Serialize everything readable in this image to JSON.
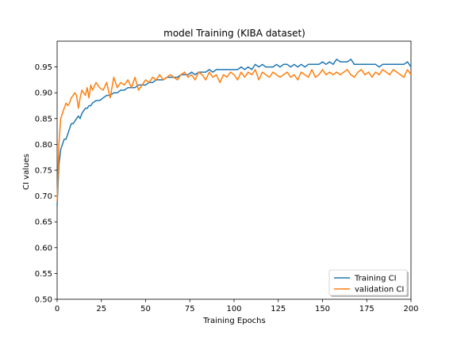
{
  "chart_data": {
    "type": "line",
    "title": "model Training (KIBA dataset)",
    "xlabel": "Training Epochs",
    "ylabel": "CI values",
    "xlim": [
      0,
      200
    ],
    "ylim": [
      0.5,
      1.0
    ],
    "xticks": [
      0,
      25,
      50,
      75,
      100,
      125,
      150,
      175,
      200
    ],
    "yticks": [
      0.5,
      0.55,
      0.6,
      0.65,
      0.7,
      0.75,
      0.8,
      0.85,
      0.9,
      0.95
    ],
    "grid": false,
    "legend_position": "bottom-right",
    "series": [
      {
        "name": "Training CI",
        "color": "#1f77b4",
        "x": [
          0,
          1,
          2,
          3,
          4,
          5,
          6,
          7,
          8,
          9,
          10,
          11,
          12,
          13,
          14,
          15,
          16,
          17,
          18,
          19,
          20,
          22,
          24,
          26,
          28,
          30,
          32,
          34,
          36,
          38,
          40,
          42,
          44,
          46,
          48,
          50,
          52,
          54,
          56,
          58,
          60,
          62,
          64,
          66,
          68,
          70,
          72,
          74,
          76,
          78,
          80,
          82,
          84,
          86,
          88,
          90,
          92,
          94,
          96,
          98,
          100,
          102,
          104,
          106,
          108,
          110,
          112,
          114,
          116,
          118,
          120,
          122,
          124,
          126,
          128,
          130,
          132,
          134,
          136,
          138,
          140,
          142,
          144,
          146,
          148,
          150,
          152,
          154,
          156,
          158,
          160,
          162,
          164,
          166,
          168,
          170,
          172,
          174,
          176,
          178,
          180,
          182,
          184,
          186,
          188,
          190,
          192,
          194,
          196,
          198,
          200
        ],
        "y": [
          0.68,
          0.76,
          0.79,
          0.8,
          0.81,
          0.81,
          0.82,
          0.83,
          0.84,
          0.84,
          0.845,
          0.85,
          0.855,
          0.85,
          0.86,
          0.865,
          0.87,
          0.87,
          0.875,
          0.875,
          0.88,
          0.885,
          0.885,
          0.89,
          0.895,
          0.895,
          0.9,
          0.9,
          0.905,
          0.905,
          0.91,
          0.91,
          0.91,
          0.915,
          0.915,
          0.915,
          0.92,
          0.92,
          0.925,
          0.925,
          0.925,
          0.93,
          0.93,
          0.93,
          0.93,
          0.935,
          0.935,
          0.935,
          0.94,
          0.935,
          0.94,
          0.94,
          0.94,
          0.945,
          0.94,
          0.945,
          0.945,
          0.945,
          0.945,
          0.945,
          0.945,
          0.945,
          0.95,
          0.945,
          0.95,
          0.945,
          0.955,
          0.95,
          0.955,
          0.95,
          0.95,
          0.95,
          0.955,
          0.95,
          0.955,
          0.955,
          0.95,
          0.955,
          0.95,
          0.955,
          0.95,
          0.955,
          0.955,
          0.955,
          0.955,
          0.96,
          0.955,
          0.96,
          0.955,
          0.965,
          0.96,
          0.96,
          0.96,
          0.965,
          0.955,
          0.955,
          0.955,
          0.955,
          0.955,
          0.955,
          0.955,
          0.95,
          0.955,
          0.955,
          0.955,
          0.955,
          0.955,
          0.955,
          0.955,
          0.96,
          0.95
        ]
      },
      {
        "name": "validation CI",
        "color": "#ff7f0e",
        "x": [
          0,
          1,
          2,
          3,
          4,
          5,
          6,
          7,
          8,
          9,
          10,
          11,
          12,
          13,
          14,
          15,
          16,
          17,
          18,
          19,
          20,
          22,
          24,
          26,
          28,
          30,
          32,
          34,
          36,
          38,
          40,
          42,
          44,
          46,
          48,
          50,
          52,
          54,
          56,
          58,
          60,
          62,
          64,
          66,
          68,
          70,
          72,
          74,
          76,
          78,
          80,
          82,
          84,
          86,
          88,
          90,
          92,
          94,
          96,
          98,
          100,
          102,
          104,
          106,
          108,
          110,
          112,
          114,
          116,
          118,
          120,
          122,
          124,
          126,
          128,
          130,
          132,
          134,
          136,
          138,
          140,
          142,
          144,
          146,
          148,
          150,
          152,
          154,
          156,
          158,
          160,
          162,
          164,
          166,
          168,
          170,
          172,
          174,
          176,
          178,
          180,
          182,
          184,
          186,
          188,
          190,
          192,
          194,
          196,
          198,
          200
        ],
        "y": [
          0.69,
          0.8,
          0.85,
          0.86,
          0.87,
          0.88,
          0.875,
          0.88,
          0.89,
          0.895,
          0.9,
          0.895,
          0.87,
          0.89,
          0.905,
          0.9,
          0.895,
          0.91,
          0.89,
          0.915,
          0.905,
          0.92,
          0.91,
          0.905,
          0.92,
          0.89,
          0.93,
          0.91,
          0.92,
          0.915,
          0.925,
          0.91,
          0.93,
          0.905,
          0.915,
          0.925,
          0.92,
          0.93,
          0.925,
          0.935,
          0.925,
          0.93,
          0.935,
          0.93,
          0.925,
          0.935,
          0.94,
          0.93,
          0.935,
          0.925,
          0.94,
          0.935,
          0.925,
          0.94,
          0.93,
          0.935,
          0.92,
          0.935,
          0.93,
          0.94,
          0.935,
          0.925,
          0.94,
          0.93,
          0.94,
          0.935,
          0.945,
          0.925,
          0.94,
          0.935,
          0.93,
          0.94,
          0.935,
          0.93,
          0.935,
          0.94,
          0.93,
          0.935,
          0.925,
          0.94,
          0.935,
          0.93,
          0.945,
          0.93,
          0.935,
          0.945,
          0.935,
          0.94,
          0.935,
          0.94,
          0.935,
          0.94,
          0.945,
          0.935,
          0.93,
          0.94,
          0.945,
          0.935,
          0.94,
          0.93,
          0.94,
          0.935,
          0.945,
          0.94,
          0.935,
          0.945,
          0.94,
          0.935,
          0.93,
          0.945,
          0.935
        ]
      }
    ]
  }
}
